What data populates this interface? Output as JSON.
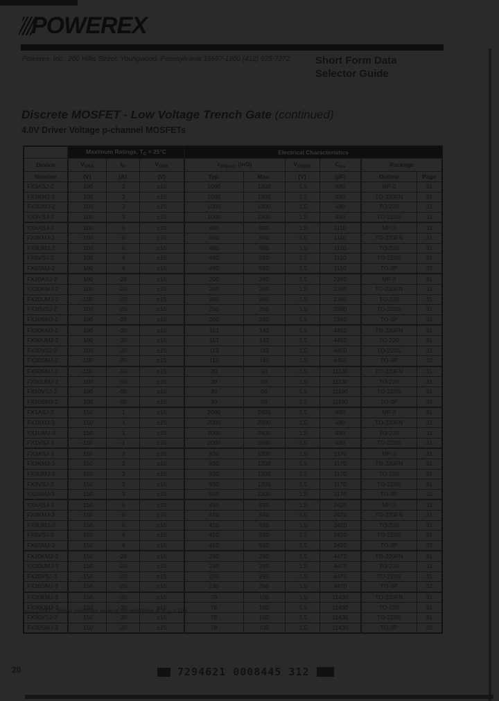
{
  "colors": {
    "paper": "#2a2a2b",
    "ink": "#121212",
    "bar_fill": "#0e0e0e",
    "bar_text": "#38383b"
  },
  "header": {
    "logo": "POWEREX",
    "address": "Powerex, Inc., 200 Hillis Street, Youngwood, Pennsylvania 15697-1800 (412) 925-7272",
    "doc_title_1": "Short Form Data",
    "doc_title_2": "Selector Guide"
  },
  "section": {
    "title": "Discrete MOSFET - Low Voltage Trench Gate",
    "continued": " (continued)",
    "subtitle": "4.0V Driver Voltage p-channel MOSFETs"
  },
  "table": {
    "bar1": {
      "p1": "Maximum Ratings, T",
      "sub": "C",
      "p2": " = 25°C"
    },
    "bar2": "Electrical Characteristics",
    "cols": {
      "device": {
        "l1": "Device",
        "l2": "Number"
      },
      "vdss": {
        "sym": "V",
        "sub": "DSS",
        "unit": "(V)"
      },
      "id": {
        "sym": "I",
        "sub": "D",
        "unit": "(A)"
      },
      "vgss": {
        "sym": "V",
        "sub": "GSS",
        "unit": "(V)"
      },
      "rdson": {
        "sym": "r",
        "sub": "DS(on)",
        "suffix": ", (mΩ)",
        "typ": "Typ.",
        "max": "Max."
      },
      "vgsth": {
        "sym": "V",
        "sub": "GS(th)",
        "unit": "(V)"
      },
      "ciss": {
        "sym": "C",
        "sub": "iss",
        "unit": "(pF)"
      },
      "package": {
        "label": "Package",
        "outline": "Outline",
        "page": "Page"
      }
    },
    "col_keys": [
      "device",
      "vdss",
      "id",
      "vgss",
      "rdson-typ",
      "rdson-max",
      "vgsth",
      "ciss",
      "outline",
      "page"
    ],
    "group_end_rows": [
      3,
      8,
      13,
      17,
      21,
      25,
      30,
      35,
      39
    ],
    "rows": [
      [
        "FX3ASJ-2",
        "-100",
        "-3",
        "±15",
        "1000",
        "1300",
        "-1.5",
        "480",
        "MP-3",
        "31"
      ],
      [
        "FX3KMJ-2",
        "-100",
        "-3",
        "±15",
        "1000",
        "1300",
        "-1.5",
        "480",
        "TO-220FN",
        "31"
      ],
      [
        "FX3UMJ-2",
        "-100",
        "-3",
        "±15",
        "1000",
        "1300",
        "-1.5",
        "480",
        "TO-220",
        "31"
      ],
      [
        "FX3VSJ-2",
        "-100",
        "-3",
        "±15",
        "1000",
        "1300",
        "-1.5",
        "480",
        "TO-220S",
        "31"
      ],
      [
        "FX6ASJ-2",
        "-100",
        "-6",
        "±15",
        "460",
        "580",
        "-1.5",
        "1110",
        "MP-3",
        "31"
      ],
      [
        "FX6KMJ-2",
        "-100",
        "-6",
        "±15",
        "460",
        "580",
        "-1.5",
        "1110",
        "TO-220FN",
        "31"
      ],
      [
        "FX6UMJ-2",
        "-100",
        "-6",
        "±15",
        "460",
        "580",
        "-1.5",
        "1110",
        "TO-220",
        "31"
      ],
      [
        "FX6VSJ-2",
        "-100",
        "-6",
        "±15",
        "460",
        "580",
        "-1.5",
        "1110",
        "TO-220S",
        "31"
      ],
      [
        "FX6SMJ-2",
        "-100",
        "-6",
        "±15",
        "460",
        "580",
        "-1.5",
        "1110",
        "TO-3P",
        "32"
      ],
      [
        "FX20ASJ-2",
        "-100",
        "-20",
        "±15",
        "200",
        "260",
        "-1.5",
        "2360",
        "MP-3",
        "31"
      ],
      [
        "FX20KMJ-2",
        "-100",
        "-20",
        "±15",
        "200",
        "260",
        "-1.5",
        "2360",
        "TO-220FN",
        "31"
      ],
      [
        "FX20UMJ-2",
        "-100",
        "-20",
        "±15",
        "200",
        "260",
        "-1.5",
        "2360",
        "TO-220",
        "31"
      ],
      [
        "FX20VSJ-2",
        "-100",
        "-20",
        "±15",
        "200",
        "260",
        "-1.5",
        "2360",
        "TO-220S",
        "31"
      ],
      [
        "FX20SMJ-2",
        "-100",
        "-20",
        "±15",
        "200",
        "260",
        "-1.5",
        "2360",
        "TO-3P",
        "32"
      ],
      [
        "FX30KMJ-2",
        "-100",
        "-30",
        "±15",
        "113",
        "143",
        "-1.5",
        "4450",
        "TO-220FN",
        "31"
      ],
      [
        "FX30UMJ-2",
        "-100",
        "-30",
        "±15",
        "113",
        "143",
        "-1.5",
        "4450",
        "TO-220",
        "31"
      ],
      [
        "FX30VSJ-2",
        "-100",
        "-30",
        "±15",
        "113",
        "143",
        "-1.5",
        "4450",
        "TO-220S",
        "31"
      ],
      [
        "FX30SMJ-2",
        "-100",
        "-30",
        "±15",
        "113",
        "143",
        "-1.5",
        "4450",
        "TO-3P",
        "32"
      ],
      [
        "FX50KMJ-2",
        "-100",
        "-50",
        "±15",
        "39",
        "50",
        "-1.5",
        "11130",
        "TO-220FN",
        "31"
      ],
      [
        "FX50UMJ-2",
        "-100",
        "-50",
        "±15",
        "39",
        "50",
        "-1.5",
        "11130",
        "TO-220",
        "31"
      ],
      [
        "FX50VSJ-2",
        "-100",
        "-50",
        "±15",
        "39",
        "50",
        "-1.5",
        "11190",
        "TO-220S",
        "31"
      ],
      [
        "FX50SMJ-2",
        "-100",
        "-50",
        "±15",
        "39",
        "50",
        "-1.5",
        "11190",
        "TO-3P",
        "32"
      ],
      [
        "FX1ASJ-3",
        "-150",
        "-1",
        "±15",
        "2000",
        "2600",
        "-1.5",
        "480",
        "MP-3",
        "31"
      ],
      [
        "FX1KMJ-3",
        "-150",
        "-1",
        "±15",
        "2000",
        "2600",
        "-1.5",
        "480",
        "TO-220FN",
        "31"
      ],
      [
        "FX1UMJ-3",
        "-150",
        "-1",
        "±15",
        "2000",
        "2600",
        "-1.5",
        "480",
        "TO-220",
        "31"
      ],
      [
        "FX1VSJ-3",
        "-150",
        "-1",
        "±15",
        "2000",
        "2600",
        "-1.5",
        "480",
        "TO-220S",
        "31"
      ],
      [
        "FX3ASJ-3",
        "-150",
        "-3",
        "±15",
        "930",
        "1200",
        "-1.5",
        "1170",
        "MP-3",
        "31"
      ],
      [
        "FX3KMJ-3",
        "-150",
        "-3",
        "±15",
        "930",
        "1200",
        "-1.5",
        "1170",
        "TO-220FN",
        "31"
      ],
      [
        "FX3UMJ-3",
        "-150",
        "-3",
        "±15",
        "930",
        "1200",
        "-1.5",
        "1170",
        "TO-220",
        "31"
      ],
      [
        "FX3VSJ-3",
        "-150",
        "-3",
        "±15",
        "930",
        "1200",
        "-1.5",
        "1170",
        "TO-220S",
        "31"
      ],
      [
        "FX3SMJ-3",
        "-150",
        "-3",
        "±15",
        "930",
        "1200",
        "-1.5",
        "1170",
        "TO-3P",
        "32"
      ],
      [
        "FX6ASJ-3",
        "-150",
        "-6",
        "±15",
        "410",
        "530",
        "-1.5",
        "2420",
        "MP-3",
        "31"
      ],
      [
        "FX6KMJ-3",
        "-150",
        "-6",
        "±15",
        "410",
        "530",
        "-1.5",
        "2420",
        "TO-220FN",
        "31"
      ],
      [
        "FX6UMJ-3",
        "-150",
        "-6",
        "±15",
        "410",
        "530",
        "-1.5",
        "2420",
        "TO-220",
        "31"
      ],
      [
        "FX6VSJ-3",
        "-150",
        "-6",
        "±15",
        "410",
        "530",
        "-1.5",
        "2420",
        "TO-220S",
        "31"
      ],
      [
        "FX6SMJ-3",
        "-150",
        "-6",
        "±15",
        "410",
        "530",
        "-1.5",
        "2420",
        "TO-3P",
        "32"
      ],
      [
        "FX20KMJ-3",
        "-150",
        "-20",
        "±15",
        "230",
        "290",
        "-1.5",
        "4470",
        "TO-220FN",
        "31"
      ],
      [
        "FX20UMJ-3",
        "-150",
        "-20",
        "±15",
        "230",
        "290",
        "-1.5",
        "4470",
        "TO-220",
        "31"
      ],
      [
        "FX20VSJ-3",
        "-150",
        "-20",
        "±15",
        "230",
        "290",
        "-1.5",
        "4470",
        "TO-220S",
        "31"
      ],
      [
        "FX20SMJ-3",
        "-150",
        "-20",
        "±15",
        "230",
        "290",
        "-1.5",
        "4470",
        "TO-3P",
        "32"
      ],
      [
        "FX30KMJ-3",
        "-150",
        "-30",
        "±15",
        "78",
        "100",
        "-1.5",
        "11430",
        "TO-220FN",
        "31"
      ],
      [
        "FX30UMJ-3",
        "-150",
        "-30",
        "±15",
        "78",
        "100",
        "-1.5",
        "11430",
        "TO-220",
        "31"
      ],
      [
        "FX30VSJ-3",
        "-150",
        "-30",
        "±15",
        "78",
        "100",
        "-1.5",
        "11430",
        "TO-220S",
        "31"
      ],
      [
        "FX30SMJ-3",
        "-150",
        "-30",
        "±15",
        "78",
        "100",
        "-1.5",
        "11430",
        "TO-3P",
        "32"
      ]
    ]
  },
  "footnote": {
    "p1": "r",
    "s1": "DS(on)",
    "p2": " (mΩ) - shows maximum value of on-resistance at V",
    "s2": "GS",
    "p3": " = 10V"
  },
  "footer": {
    "page_number": "20",
    "barcode_1": "7294621",
    "barcode_2": "0008445",
    "barcode_3": "312"
  }
}
